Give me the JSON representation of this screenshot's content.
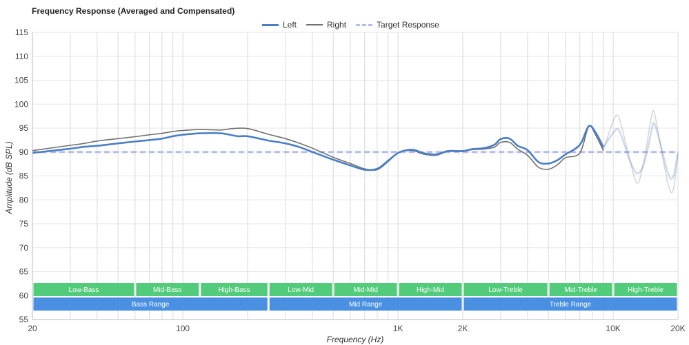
{
  "chart_data": {
    "type": "line",
    "title": "Frequency Response (Averaged and Compensated)",
    "xlabel": "Frequency (Hz)",
    "ylabel": "Amplitude (dB SPL)",
    "x_scale": "log",
    "xlim": [
      20,
      20000
    ],
    "ylim": [
      55,
      115
    ],
    "x_tick_labels": [
      {
        "value": 20,
        "label": "20"
      },
      {
        "value": 100,
        "label": "100"
      },
      {
        "value": 1000,
        "label": "1K"
      },
      {
        "value": 2000,
        "label": "2K"
      },
      {
        "value": 10000,
        "label": "10K"
      },
      {
        "value": 20000,
        "label": "20K"
      }
    ],
    "y_ticks": [
      55,
      60,
      65,
      70,
      75,
      80,
      85,
      90,
      95,
      100,
      105,
      110,
      115
    ],
    "grid": true,
    "legend_position": "top",
    "legend": [
      {
        "name": "Left",
        "color": "#4a7ec7",
        "style": "solid"
      },
      {
        "name": "Right",
        "color": "#707070",
        "style": "solid"
      },
      {
        "name": "Target Response",
        "color": "#b3bdf0",
        "style": "dashed"
      }
    ],
    "series": [
      {
        "name": "Left",
        "color": "#4a7ec7",
        "fade_after": 9000,
        "points": [
          [
            20,
            89.8
          ],
          [
            25,
            90.3
          ],
          [
            30,
            90.7
          ],
          [
            35,
            91.1
          ],
          [
            40,
            91.3
          ],
          [
            50,
            91.8
          ],
          [
            60,
            92.2
          ],
          [
            70,
            92.5
          ],
          [
            80,
            92.8
          ],
          [
            90,
            93.3
          ],
          [
            100,
            93.6
          ],
          [
            120,
            93.9
          ],
          [
            150,
            93.9
          ],
          [
            180,
            93.3
          ],
          [
            200,
            93.3
          ],
          [
            250,
            92.4
          ],
          [
            300,
            91.8
          ],
          [
            350,
            91.0
          ],
          [
            400,
            90.0
          ],
          [
            500,
            88.4
          ],
          [
            600,
            87.2
          ],
          [
            700,
            86.3
          ],
          [
            800,
            86.5
          ],
          [
            900,
            88.2
          ],
          [
            1000,
            89.8
          ],
          [
            1100,
            90.4
          ],
          [
            1200,
            90.4
          ],
          [
            1300,
            89.8
          ],
          [
            1500,
            89.5
          ],
          [
            1700,
            90.2
          ],
          [
            2000,
            90.2
          ],
          [
            2200,
            90.6
          ],
          [
            2500,
            90.8
          ],
          [
            2800,
            91.5
          ],
          [
            3000,
            92.7
          ],
          [
            3300,
            92.8
          ],
          [
            3600,
            91.3
          ],
          [
            4000,
            90.4
          ],
          [
            4500,
            87.9
          ],
          [
            5000,
            87.6
          ],
          [
            5500,
            88.3
          ],
          [
            6000,
            89.5
          ],
          [
            7000,
            91.5
          ],
          [
            7700,
            95.4
          ],
          [
            8300,
            94.0
          ],
          [
            9000,
            91.0
          ],
          [
            10000,
            94.0
          ],
          [
            10500,
            94.8
          ],
          [
            11000,
            93.0
          ],
          [
            12000,
            88.0
          ],
          [
            13000,
            85.5
          ],
          [
            14000,
            88.0
          ],
          [
            15000,
            94.0
          ],
          [
            15500,
            96.0
          ],
          [
            16500,
            92.0
          ],
          [
            18000,
            85.5
          ],
          [
            19000,
            84.8
          ],
          [
            20000,
            90.0
          ]
        ]
      },
      {
        "name": "Right",
        "color": "#707070",
        "fade_after": 9000,
        "points": [
          [
            20,
            90.3
          ],
          [
            25,
            90.9
          ],
          [
            30,
            91.4
          ],
          [
            35,
            91.8
          ],
          [
            40,
            92.3
          ],
          [
            50,
            92.8
          ],
          [
            60,
            93.2
          ],
          [
            70,
            93.6
          ],
          [
            80,
            93.9
          ],
          [
            90,
            94.3
          ],
          [
            100,
            94.5
          ],
          [
            120,
            94.7
          ],
          [
            150,
            94.6
          ],
          [
            170,
            94.9
          ],
          [
            200,
            94.9
          ],
          [
            250,
            93.7
          ],
          [
            300,
            92.8
          ],
          [
            350,
            91.8
          ],
          [
            400,
            90.8
          ],
          [
            500,
            88.9
          ],
          [
            600,
            87.6
          ],
          [
            700,
            86.5
          ],
          [
            800,
            86.3
          ],
          [
            900,
            88.0
          ],
          [
            1000,
            89.8
          ],
          [
            1100,
            90.3
          ],
          [
            1200,
            90.2
          ],
          [
            1300,
            89.6
          ],
          [
            1500,
            89.3
          ],
          [
            1700,
            90.1
          ],
          [
            2000,
            90.1
          ],
          [
            2200,
            90.5
          ],
          [
            2500,
            90.6
          ],
          [
            2800,
            91.0
          ],
          [
            3000,
            92.0
          ],
          [
            3300,
            92.0
          ],
          [
            3600,
            90.6
          ],
          [
            4000,
            89.3
          ],
          [
            4500,
            86.8
          ],
          [
            5000,
            86.4
          ],
          [
            5500,
            87.3
          ],
          [
            6000,
            88.8
          ],
          [
            7000,
            89.8
          ],
          [
            7700,
            95.3
          ],
          [
            8300,
            93.5
          ],
          [
            9000,
            90.3
          ],
          [
            10000,
            96.5
          ],
          [
            10500,
            97.6
          ],
          [
            11000,
            95.0
          ],
          [
            12000,
            88.0
          ],
          [
            13000,
            83.5
          ],
          [
            14000,
            89.0
          ],
          [
            15000,
            97.0
          ],
          [
            15500,
            98.3
          ],
          [
            16500,
            92.0
          ],
          [
            18000,
            83.3
          ],
          [
            19000,
            82.0
          ],
          [
            20000,
            89.5
          ]
        ]
      },
      {
        "name": "Target Response",
        "color": "#b3bdf0",
        "points": [
          [
            20,
            90
          ],
          [
            20000,
            90
          ]
        ]
      }
    ],
    "bands": [
      {
        "label": "Low-Bass",
        "from": 20,
        "to": 60
      },
      {
        "label": "Mid-Bass",
        "from": 60,
        "to": 120
      },
      {
        "label": "High-Bass",
        "from": 120,
        "to": 250
      },
      {
        "label": "Low-Mid",
        "from": 250,
        "to": 500
      },
      {
        "label": "Mid-Mid",
        "from": 500,
        "to": 1000
      },
      {
        "label": "High-Mid",
        "from": 1000,
        "to": 2000
      },
      {
        "label": "Low-Treble",
        "from": 2000,
        "to": 5000
      },
      {
        "label": "Mid-Treble",
        "from": 5000,
        "to": 10000
      },
      {
        "label": "High-Treble",
        "from": 10000,
        "to": 20000
      }
    ],
    "ranges": [
      {
        "label": "Bass Range",
        "from": 20,
        "to": 250
      },
      {
        "label": "Mid Range",
        "from": 250,
        "to": 2000
      },
      {
        "label": "Treble Range",
        "from": 2000,
        "to": 20000
      }
    ],
    "band_color": "#52cc7a",
    "range_color": "#4a90e2"
  }
}
